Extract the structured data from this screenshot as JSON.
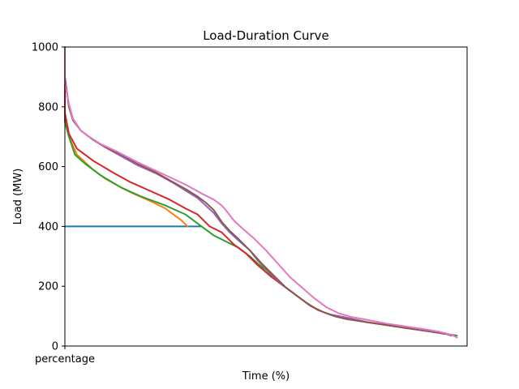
{
  "chart_data": {
    "type": "line",
    "title": "Load-Duration Curve",
    "xlabel": "Time (%)",
    "ylabel": "Load (MW)",
    "xlim": [
      0,
      100
    ],
    "ylim": [
      0,
      1000
    ],
    "x_ticks": [
      {
        "value": 0,
        "label": "percentage"
      }
    ],
    "y_ticks": [
      0,
      200,
      400,
      600,
      800,
      1000
    ],
    "grid": false,
    "legend": "none",
    "series": [
      {
        "color": "#1f77b4",
        "points": [
          [
            0,
            400
          ],
          [
            34,
            400
          ]
        ]
      },
      {
        "color": "#ff7f0e",
        "points": [
          [
            30.5,
            400
          ],
          [
            29,
            420
          ],
          [
            27,
            440
          ],
          [
            25,
            460
          ],
          [
            22,
            480
          ],
          [
            17,
            510
          ],
          [
            14,
            530
          ],
          [
            10,
            560
          ],
          [
            7,
            590
          ],
          [
            3,
            640
          ],
          [
            1,
            700
          ],
          [
            0,
            760
          ],
          [
            0,
            900
          ],
          [
            0,
            1000
          ]
        ]
      },
      {
        "color": "#2ca02c",
        "points": [
          [
            0,
            960
          ],
          [
            0,
            750
          ],
          [
            1,
            700
          ],
          [
            2.5,
            640
          ],
          [
            5,
            610
          ],
          [
            9,
            570
          ],
          [
            14,
            530
          ],
          [
            19,
            500
          ],
          [
            25,
            470
          ],
          [
            30,
            440
          ],
          [
            34,
            400
          ],
          [
            37,
            370
          ],
          [
            40,
            350
          ],
          [
            43,
            330
          ],
          [
            46,
            300
          ],
          [
            48,
            275
          ],
          [
            50,
            255
          ],
          [
            53,
            215
          ],
          [
            55,
            195
          ],
          [
            57,
            175
          ],
          [
            59,
            155
          ],
          [
            61,
            135
          ],
          [
            63,
            120
          ],
          [
            66,
            105
          ],
          [
            70,
            95
          ],
          [
            75,
            80
          ],
          [
            80,
            70
          ],
          [
            85,
            60
          ],
          [
            90,
            50
          ],
          [
            95,
            40
          ],
          [
            97.5,
            35
          ]
        ]
      },
      {
        "color": "#d62728",
        "points": [
          [
            0,
            960
          ],
          [
            0,
            780
          ],
          [
            1,
            710
          ],
          [
            3,
            660
          ],
          [
            7,
            620
          ],
          [
            12,
            580
          ],
          [
            16,
            550
          ],
          [
            21,
            520
          ],
          [
            26,
            490
          ],
          [
            30,
            460
          ],
          [
            33,
            440
          ],
          [
            36,
            400
          ],
          [
            39,
            380
          ],
          [
            42,
            340
          ],
          [
            45,
            310
          ],
          [
            48,
            270
          ],
          [
            51,
            235
          ],
          [
            54,
            205
          ],
          [
            57,
            175
          ],
          [
            60,
            145
          ],
          [
            63,
            120
          ],
          [
            66,
            105
          ],
          [
            70,
            95
          ],
          [
            75,
            80
          ],
          [
            80,
            70
          ],
          [
            85,
            60
          ],
          [
            90,
            50
          ],
          [
            95,
            40
          ],
          [
            96,
            35
          ]
        ]
      },
      {
        "color": "#9467bd",
        "points": [
          [
            0,
            990
          ],
          [
            0,
            900
          ],
          [
            1,
            800
          ],
          [
            2,
            760
          ],
          [
            4,
            720
          ],
          [
            7,
            690
          ],
          [
            10,
            665
          ],
          [
            14,
            635
          ],
          [
            18,
            605
          ],
          [
            23,
            575
          ],
          [
            27,
            545
          ],
          [
            30,
            520
          ],
          [
            33,
            495
          ],
          [
            35,
            470
          ],
          [
            37,
            445
          ],
          [
            39,
            410
          ],
          [
            41,
            380
          ],
          [
            43,
            355
          ],
          [
            46,
            320
          ],
          [
            48,
            285
          ],
          [
            51,
            245
          ],
          [
            54,
            205
          ],
          [
            57,
            175
          ],
          [
            60,
            145
          ],
          [
            63,
            120
          ],
          [
            66,
            105
          ],
          [
            70,
            95
          ],
          [
            75,
            80
          ],
          [
            80,
            70
          ],
          [
            85,
            60
          ],
          [
            90,
            50
          ],
          [
            95,
            40
          ],
          [
            96,
            35
          ]
        ]
      },
      {
        "color": "#8c564b",
        "points": [
          [
            0,
            980
          ],
          [
            0,
            900
          ],
          [
            1,
            800
          ],
          [
            2,
            755
          ],
          [
            4,
            720
          ],
          [
            7,
            690
          ],
          [
            10,
            665
          ],
          [
            14,
            640
          ],
          [
            18,
            610
          ],
          [
            22,
            585
          ],
          [
            26,
            555
          ],
          [
            30,
            525
          ],
          [
            33,
            500
          ],
          [
            35,
            480
          ],
          [
            37,
            455
          ],
          [
            39,
            415
          ],
          [
            41,
            385
          ],
          [
            43,
            360
          ],
          [
            46,
            320
          ],
          [
            49,
            275
          ],
          [
            52,
            235
          ],
          [
            55,
            195
          ],
          [
            58,
            165
          ],
          [
            61,
            135
          ],
          [
            64,
            115
          ],
          [
            67,
            100
          ],
          [
            70,
            90
          ],
          [
            75,
            80
          ],
          [
            80,
            70
          ],
          [
            85,
            60
          ],
          [
            90,
            52
          ],
          [
            95,
            40
          ],
          [
            97,
            35
          ]
        ]
      },
      {
        "color": "#e377c2",
        "points": [
          [
            0,
            1000
          ],
          [
            0,
            880
          ],
          [
            1,
            810
          ],
          [
            2,
            760
          ],
          [
            4,
            720
          ],
          [
            6,
            700
          ],
          [
            9,
            675
          ],
          [
            13,
            650
          ],
          [
            18,
            615
          ],
          [
            22,
            590
          ],
          [
            26,
            565
          ],
          [
            30,
            540
          ],
          [
            34,
            510
          ],
          [
            37,
            490
          ],
          [
            39,
            470
          ],
          [
            40,
            455
          ],
          [
            42,
            420
          ],
          [
            44,
            395
          ],
          [
            47,
            360
          ],
          [
            50,
            320
          ],
          [
            53,
            275
          ],
          [
            56,
            230
          ],
          [
            59,
            195
          ],
          [
            62,
            160
          ],
          [
            65,
            130
          ],
          [
            68,
            110
          ],
          [
            71,
            98
          ],
          [
            75,
            88
          ],
          [
            80,
            75
          ],
          [
            85,
            65
          ],
          [
            90,
            55
          ],
          [
            93,
            48
          ],
          [
            96,
            38
          ],
          [
            97,
            32
          ],
          [
            97.5,
            28
          ]
        ]
      }
    ]
  }
}
